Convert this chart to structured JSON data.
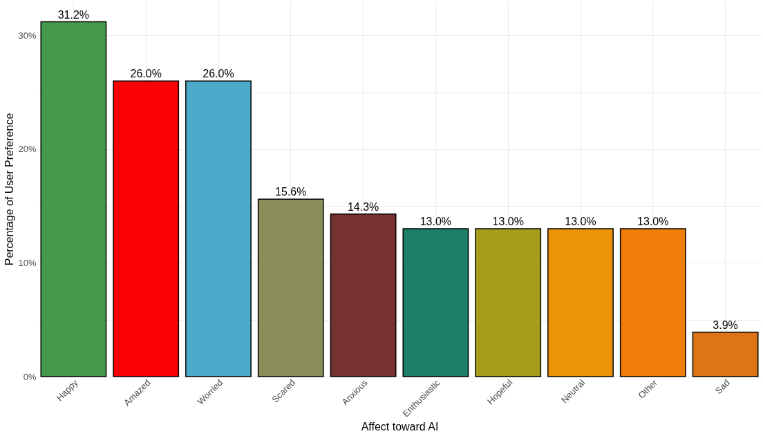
{
  "chart_data": {
    "type": "bar",
    "xlabel": "Affect toward AI",
    "ylabel": "Percentage of User Preference",
    "categories": [
      "Happy",
      "Amazed",
      "Worried",
      "Scared",
      "Anxious",
      "Enthusiastic",
      "Hopeful",
      "Neutral",
      "Other",
      "Sad"
    ],
    "values": [
      31.2,
      26.0,
      26.0,
      15.6,
      14.3,
      13.0,
      13.0,
      13.0,
      13.0,
      3.9
    ],
    "colors": [
      "#43984a",
      "#fb0006",
      "#4ba9c9",
      "#8b8f5c",
      "#763131",
      "#1b7f6a",
      "#a89d1a",
      "#ec9308",
      "#ef7d08",
      "#dd7418"
    ],
    "value_labels": [
      "31.2%",
      "26.0%",
      "26.0%",
      "15.6%",
      "14.3%",
      "13.0%",
      "13.0%",
      "13.0%",
      "13.0%",
      "3.9%"
    ],
    "ylim": [
      0,
      33
    ],
    "yticks": [
      {
        "value": 0,
        "label": "0%"
      },
      {
        "value": 5,
        "label": null
      },
      {
        "value": 10,
        "label": "10%"
      },
      {
        "value": 15,
        "label": null
      },
      {
        "value": 20,
        "label": "20%"
      },
      {
        "value": 25,
        "label": null
      },
      {
        "value": 30,
        "label": "30%"
      }
    ],
    "grid": true
  }
}
